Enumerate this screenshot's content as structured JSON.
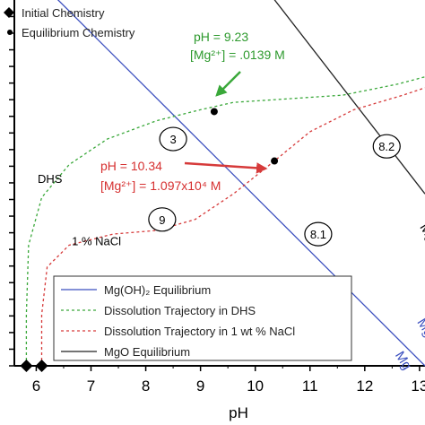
{
  "chart_data": {
    "type": "line",
    "xlabel": "pH",
    "ylabel": "",
    "xlim": [
      5.6,
      13.1
    ],
    "ylim": [
      0,
      1
    ],
    "x_ticks": [
      "6",
      "7",
      "8",
      "9",
      "10",
      "11",
      "12",
      "13"
    ],
    "grid": false,
    "legend_top": {
      "entries": [
        {
          "label": "Initial Chemistry",
          "marker": "diamond"
        },
        {
          "label": "Equilibrium Chemistry",
          "marker": "dot"
        }
      ]
    },
    "legend_bottom": {
      "entries": [
        {
          "label": "Mg(OH)₂ Equilibrium",
          "color": "#3b4fbf",
          "style": "solid"
        },
        {
          "label": "Dissolution Trajectory in DHS",
          "color": "#3aa83a",
          "style": "dashed"
        },
        {
          "label": "Dissolution Trajectory in 1 wt % NaCl",
          "color": "#d63a3a",
          "style": "dashed"
        },
        {
          "label": "MgO Equilibrium",
          "color": "#222222",
          "style": "solid"
        }
      ]
    },
    "series": [
      {
        "name": "Mg(OH)₂ Equilibrium",
        "color": "#3b4fbf",
        "style": "solid",
        "points": [
          [
            6.2,
            1.03
          ],
          [
            13.1,
            0.0
          ]
        ]
      },
      {
        "name": "MgO Equilibrium",
        "color": "#222222",
        "style": "solid",
        "points": [
          [
            10.2,
            1.03
          ],
          [
            13.1,
            0.47
          ]
        ]
      },
      {
        "name": "Dissolution Trajectory in DHS",
        "color": "#3aa83a",
        "style": "dashed",
        "points": [
          [
            5.82,
            0.0
          ],
          [
            5.82,
            0.14
          ],
          [
            5.86,
            0.33
          ],
          [
            6.1,
            0.46
          ],
          [
            6.6,
            0.55
          ],
          [
            7.3,
            0.62
          ],
          [
            8.2,
            0.67
          ],
          [
            9.0,
            0.7
          ],
          [
            9.6,
            0.72
          ],
          [
            10.6,
            0.73
          ],
          [
            11.6,
            0.74
          ],
          [
            12.6,
            0.77
          ],
          [
            13.1,
            0.79
          ]
        ]
      },
      {
        "name": "Dissolution Trajectory in 1 wt % NaCl",
        "color": "#d63a3a",
        "style": "dashed",
        "points": [
          [
            6.1,
            0.0
          ],
          [
            6.1,
            0.14
          ],
          [
            6.2,
            0.27
          ],
          [
            6.6,
            0.33
          ],
          [
            7.4,
            0.36
          ],
          [
            8.2,
            0.37
          ],
          [
            8.9,
            0.4
          ],
          [
            9.6,
            0.47
          ],
          [
            10.35,
            0.56
          ],
          [
            11.0,
            0.64
          ],
          [
            11.8,
            0.7
          ],
          [
            12.7,
            0.74
          ],
          [
            13.1,
            0.76
          ]
        ]
      }
    ],
    "initial_points": [
      [
        5.82,
        0.0
      ],
      [
        6.1,
        0.0
      ]
    ],
    "equilibrium_points": [
      [
        9.25,
        0.695
      ],
      [
        10.35,
        0.56
      ]
    ],
    "circle_labels": [
      {
        "text": "3",
        "x": 8.5,
        "y": 0.62
      },
      {
        "text": "9",
        "x": 8.3,
        "y": 0.4
      },
      {
        "text": "8.1",
        "x": 11.15,
        "y": 0.36
      },
      {
        "text": "8.2",
        "x": 12.4,
        "y": 0.6
      }
    ],
    "curve_labels": [
      {
        "text": "DHS",
        "x": 6.25,
        "y": 0.5
      },
      {
        "text": "1 % NaCl",
        "x": 7.1,
        "y": 0.33
      }
    ],
    "edge_labels": [
      {
        "text": "Mg",
        "x": 13.0,
        "y": 0.38,
        "color": "#000000"
      },
      {
        "text": "Mg",
        "x": 12.95,
        "y": 0.12,
        "color": "#3b4fbf"
      },
      {
        "text": "Mg",
        "x": 12.55,
        "y": 0.03,
        "color": "#3b4fbf"
      }
    ],
    "annotations": [
      {
        "line1": "pH = 9.23",
        "line2": "[Mg²⁺] = .0139 M",
        "color": "#2e9a2e"
      },
      {
        "line1": "pH = 10.34",
        "line2": "[Mg²⁺] = 1.097x10⁴ M",
        "color": "#d63030"
      }
    ]
  }
}
